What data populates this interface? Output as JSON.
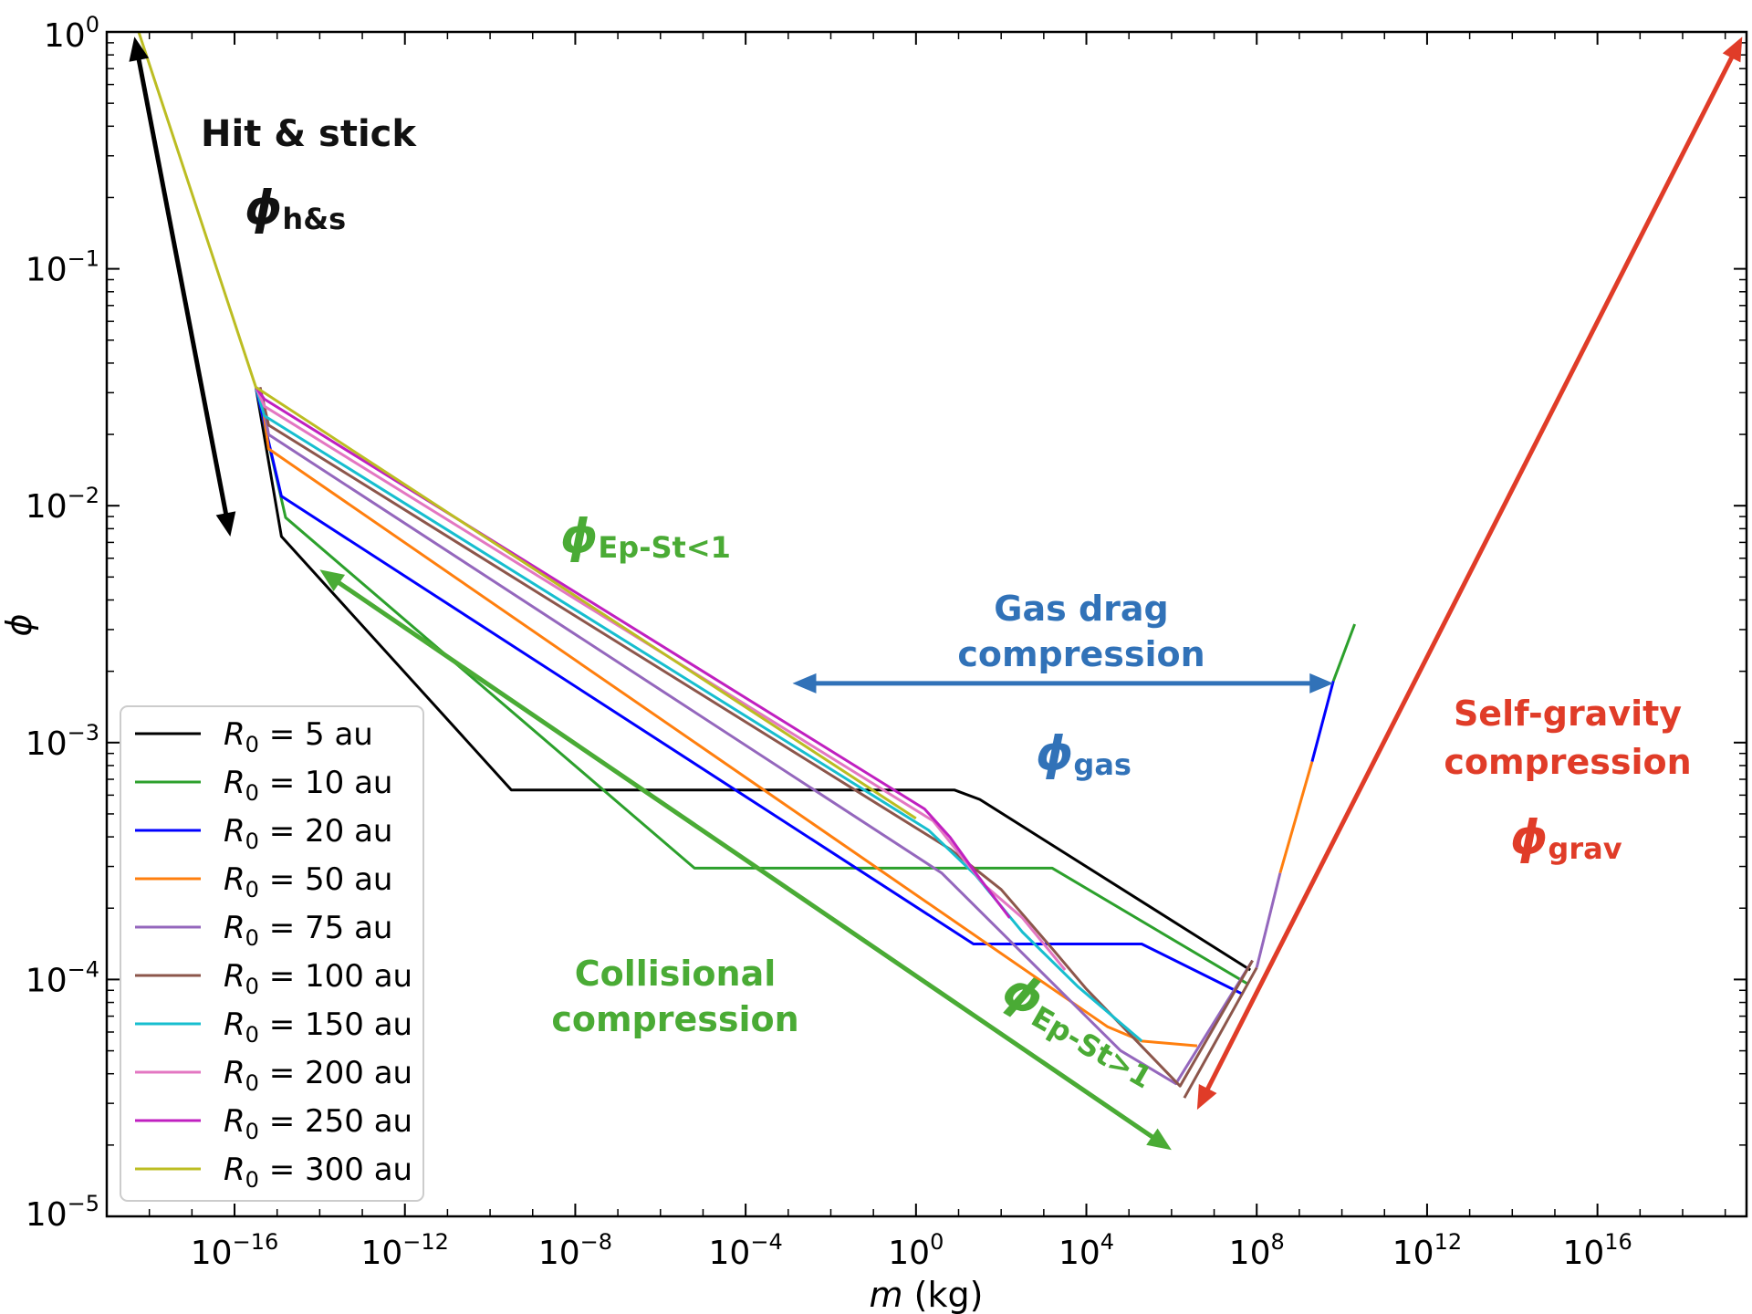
{
  "chart_data": {
    "type": "line",
    "xlabel_var": "m",
    "xlabel_unit": "(kg)",
    "ylabel": "ϕ",
    "x_scale": "log",
    "y_scale": "log",
    "xlim_exp": [
      -19,
      19.5
    ],
    "ylim_exp": [
      -5,
      0
    ],
    "x_tick_exponents": [
      -16,
      -12,
      -8,
      -4,
      0,
      4,
      8,
      12,
      16
    ],
    "y_tick_exponents": [
      0,
      -1,
      -2,
      -3,
      -4,
      -5
    ],
    "x_tick_labels": [
      "10−16",
      "10−12",
      "10−8",
      "10−4",
      "100",
      "104",
      "108",
      "1012",
      "1016"
    ],
    "y_tick_labels": [
      "100",
      "10−1",
      "10−2",
      "10−3",
      "10−4",
      "10−5"
    ],
    "legend_position": "lower-left",
    "series": [
      {
        "name": "R0 = 5 au",
        "label_var": "R",
        "label_sub": "0",
        "label_rest": " = 5 au",
        "color": "#000000",
        "points": [
          [
            -15.5,
            -1.5
          ],
          [
            -14.9,
            -2.13
          ],
          [
            -9.5,
            -3.2
          ],
          [
            -3.0,
            -3.2
          ],
          [
            0.9,
            -3.2
          ],
          [
            1.5,
            -3.24
          ],
          [
            7.85,
            -3.96
          ]
        ]
      },
      {
        "name": "R0 = 10 au",
        "label_var": "R",
        "label_sub": "0",
        "label_rest": " = 10 au",
        "color": "#2ca02c",
        "points": [
          [
            -15.5,
            -1.5
          ],
          [
            -14.8,
            -2.05
          ],
          [
            -5.2,
            -3.53
          ],
          [
            0,
            -3.53
          ],
          [
            3.2,
            -3.53
          ],
          [
            7.8,
            -4.02
          ]
        ]
      },
      {
        "name": "R0 = 20 au",
        "label_var": "R",
        "label_sub": "0",
        "label_rest": " = 20 au",
        "color": "#0000ff",
        "points": [
          [
            -15.5,
            -1.5
          ],
          [
            -14.9,
            -1.96
          ],
          [
            1.35,
            -3.85
          ],
          [
            5.3,
            -3.85
          ],
          [
            7.65,
            -4.06
          ]
        ]
      },
      {
        "name": "R0 = 50 au",
        "label_var": "R",
        "label_sub": "0",
        "label_rest": " = 50 au",
        "color": "#ff7f0e",
        "points": [
          [
            -15.4,
            -1.5
          ],
          [
            -15.2,
            -1.76
          ],
          [
            4.5,
            -4.2
          ],
          [
            5.3,
            -4.26
          ],
          [
            6.6,
            -4.28
          ]
        ]
      },
      {
        "name": "R0 = 75 au",
        "label_var": "R",
        "label_sub": "0",
        "label_rest": " = 75 au",
        "color": "#9467bd",
        "points": [
          [
            -15.4,
            -1.5
          ],
          [
            -15.2,
            -1.7
          ],
          [
            0.6,
            -3.55
          ],
          [
            4.8,
            -4.3
          ],
          [
            6.1,
            -4.44
          ],
          [
            7.9,
            -3.92
          ]
        ]
      },
      {
        "name": "R0 = 100 au",
        "label_var": "R",
        "label_sub": "0",
        "label_rest": " = 100 au",
        "color": "#8c564b",
        "points": [
          [
            -15.4,
            -1.5
          ],
          [
            -15.2,
            -1.66
          ],
          [
            0.8,
            -3.45
          ],
          [
            2.0,
            -3.62
          ],
          [
            3.2,
            -3.87
          ],
          [
            4.0,
            -4.04
          ],
          [
            6.2,
            -4.45
          ],
          [
            7.9,
            -3.92
          ]
        ]
      },
      {
        "name": "R0 = 150 au",
        "label_var": "R",
        "label_sub": "0",
        "label_rest": " = 150 au",
        "color": "#17becf",
        "points": [
          [
            -15.5,
            -1.5
          ],
          [
            -15.3,
            -1.62
          ],
          [
            0.3,
            -3.37
          ],
          [
            1.4,
            -3.56
          ],
          [
            2.5,
            -3.8
          ],
          [
            3.8,
            -4.03
          ],
          [
            5.3,
            -4.26
          ]
        ]
      },
      {
        "name": "R0 = 200 au",
        "label_var": "R",
        "label_sub": "0",
        "label_rest": " = 200 au",
        "color": "#e377c2",
        "points": [
          [
            -15.5,
            -1.5
          ],
          [
            -15.3,
            -1.58
          ],
          [
            0.4,
            -3.33
          ],
          [
            1.6,
            -3.6
          ],
          [
            2.5,
            -3.74
          ],
          [
            3.5,
            -3.96
          ]
        ]
      },
      {
        "name": "R0 = 250 au",
        "label_var": "R",
        "label_sub": "0",
        "label_rest": " = 250 au",
        "color": "#c020c0",
        "points": [
          [
            -15.5,
            -1.5
          ],
          [
            -15.3,
            -1.55
          ],
          [
            0.2,
            -3.28
          ],
          [
            0.8,
            -3.4
          ],
          [
            1.4,
            -3.55
          ],
          [
            2.2,
            -3.74
          ]
        ]
      },
      {
        "name": "R0 = 300 au",
        "label_var": "R",
        "label_sub": "0",
        "label_rest": " = 300 au",
        "color": "#bcbd22",
        "points": [
          [
            -18.25,
            0
          ],
          [
            -15.5,
            -1.5
          ],
          [
            0.0,
            -3.32
          ]
        ]
      }
    ],
    "gravity_curve": {
      "points": [
        [
          6.3,
          -4.5
        ],
        [
          8.0,
          -3.95
        ],
        [
          8.55,
          -3.55
        ],
        [
          9.3,
          -3.08
        ],
        [
          9.8,
          -2.74
        ],
        [
          10.3,
          -2.5
        ]
      ],
      "segment_colors": [
        "#8c564b",
        "#9467bd",
        "#ff7f0e",
        "#0000ff",
        "#2ca02c",
        "#000000"
      ]
    },
    "arrows": [
      {
        "name": "hit-stick-arrow",
        "from": [
          -16.1,
          -2.13
        ],
        "to": [
          -18.35,
          -0.02
        ],
        "color": "#000000",
        "both": true
      },
      {
        "name": "collisional-arrow",
        "from": [
          -14.0,
          -2.27
        ],
        "to": [
          6.0,
          -4.72
        ],
        "color": "#4aab35",
        "both": true
      },
      {
        "name": "gas-drag-arrow",
        "from": [
          -2.9,
          -2.75
        ],
        "to": [
          9.8,
          -2.75
        ],
        "color": "#3172b8",
        "both": true
      },
      {
        "name": "self-gravity-arrow",
        "from": [
          6.6,
          -4.55
        ],
        "to": [
          19.4,
          -0.02
        ],
        "color": "#e03c28",
        "both": true
      }
    ],
    "annotations": {
      "hit_stick": "Hit & stick",
      "phi_hs_sub": "h&s",
      "phi_ep_lt_sub": "Ep-St<1",
      "gas_drag_line1": "Gas drag",
      "gas_drag_line2": "compression",
      "phi_gas_sub": "gas",
      "self_gravity_line1": "Self-gravity",
      "self_gravity_line2": "compression",
      "phi_grav_sub": "grav",
      "collisional_line1": "Collisional",
      "collisional_line2": "compression",
      "phi_ep_gt_sub": "Ep-St>1",
      "phi_symbol": "ϕ"
    },
    "colors": {
      "hit_stick": "#111111",
      "collisional": "#4aab35",
      "gas": "#3172b8",
      "gravity": "#e03c28"
    }
  }
}
